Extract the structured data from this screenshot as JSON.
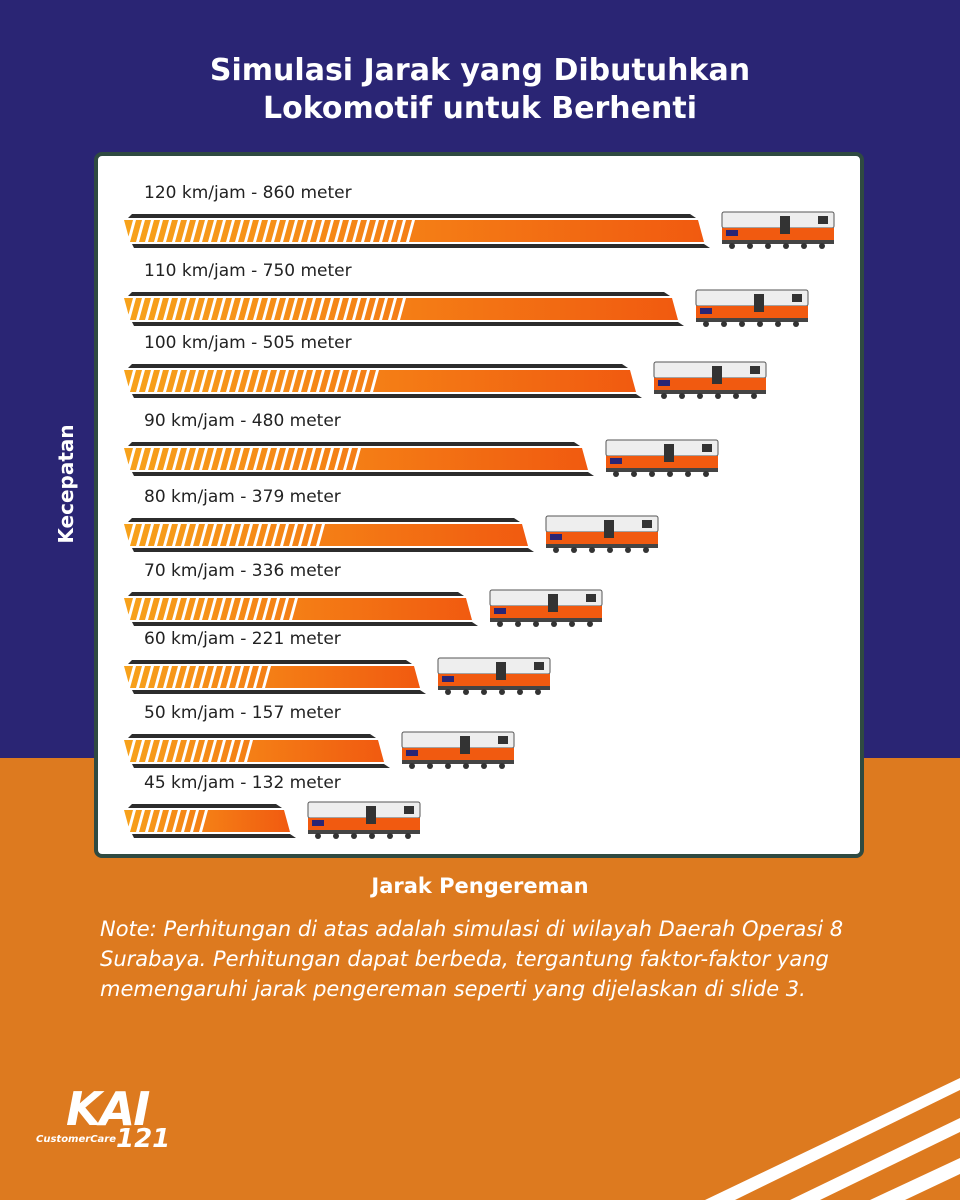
{
  "title_lines": [
    "Simulasi Jarak yang Dibutuhkan",
    "Lokomotif untuk Berhenti"
  ],
  "y_axis_label": "Kecepatan",
  "x_axis_label": "Jarak Pengereman",
  "note": "Note: Perhitungan di atas adalah simulasi di wilayah Daerah Operasi 8 Surabaya. Perhitungan dapat berbeda, tergantung faktor-faktor yang memengaruhi jarak pengereman seperti yang dijelaskan di slide 3.",
  "logo": {
    "brand": "KAI",
    "sub": "CustomerCare",
    "number": "121"
  },
  "colors": {
    "navy": "#2a2574",
    "orange": "#dd7a1f",
    "bar_light": "#f6a623",
    "bar_dark": "#f05a12",
    "bar_line": "#2c2c2c"
  },
  "chart_data": {
    "type": "bar",
    "orientation": "horizontal",
    "ylabel": "Kecepatan",
    "xlabel": "Jarak Pengereman",
    "categories": [
      "120 km/jam",
      "110 km/jam",
      "100 km/jam",
      "90 km/jam",
      "80 km/jam",
      "70 km/jam",
      "60 km/jam",
      "50 km/jam",
      "45 km/jam"
    ],
    "values": [
      860,
      750,
      505,
      480,
      379,
      336,
      221,
      157,
      132
    ],
    "labels": [
      "120 km/jam - 860 meter",
      "110 km/jam - 750 meter",
      "100 km/jam - 505 meter",
      "90 km/jam - 480 meter",
      "80 km/jam - 379 meter",
      "70 km/jam - 336 meter",
      "60 km/jam - 221 meter",
      "50 km/jam - 157 meter",
      "45 km/jam - 132 meter"
    ],
    "unit": "meter"
  }
}
